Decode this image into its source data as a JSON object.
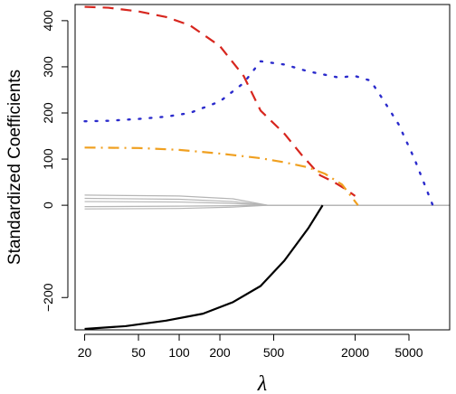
{
  "chart_data": {
    "type": "line",
    "title": "",
    "xlabel": "λ",
    "ylabel": "Standardized Coefficients",
    "x_scale": "log",
    "xlim": [
      17,
      10000
    ],
    "ylim": [
      -270,
      435
    ],
    "x_ticks": [
      {
        "value": 20,
        "label": "20"
      },
      {
        "value": 50,
        "label": "50"
      },
      {
        "value": 100,
        "label": "100"
      },
      {
        "value": 200,
        "label": "200"
      },
      {
        "value": 500,
        "label": "500"
      },
      {
        "value": 2000,
        "label": "2000"
      },
      {
        "value": 5000,
        "label": "5000"
      }
    ],
    "y_ticks": [
      {
        "value": 400,
        "label": "400"
      },
      {
        "value": 300,
        "label": "300"
      },
      {
        "value": 200,
        "label": "200"
      },
      {
        "value": 100,
        "label": "100"
      },
      {
        "value": 0,
        "label": "0"
      },
      {
        "value": -200,
        "label": "−200"
      }
    ],
    "grid": false,
    "legend": "none",
    "series": [
      {
        "color": "#d7261e",
        "dash": "dashed",
        "width": 2.2,
        "x": [
          20,
          30,
          50,
          80,
          120,
          200,
          300,
          400,
          600,
          800,
          1100,
          1400,
          1700,
          2000
        ],
        "y": [
          430,
          428,
          420,
          408,
          390,
          345,
          280,
          205,
          155,
          110,
          65,
          50,
          35,
          20
        ]
      },
      {
        "color": "#2b2bcc",
        "dash": "dotted",
        "width": 2.4,
        "x": [
          20,
          30,
          50,
          80,
          120,
          200,
          300,
          400,
          600,
          900,
          1500,
          2000,
          2600,
          3200,
          4200,
          5500,
          7500
        ],
        "y": [
          182,
          183,
          187,
          192,
          200,
          225,
          265,
          312,
          305,
          290,
          277,
          280,
          270,
          230,
          175,
          100,
          0
        ]
      },
      {
        "color": "#f0a020",
        "dash": "dashdot",
        "width": 2.2,
        "x": [
          20,
          50,
          100,
          200,
          400,
          600,
          900,
          1200,
          1600,
          2100
        ],
        "y": [
          125,
          124,
          120,
          112,
          102,
          93,
          82,
          68,
          45,
          0
        ]
      },
      {
        "color": "#000000",
        "dash": "solid",
        "width": 2.2,
        "x": [
          20,
          40,
          80,
          150,
          250,
          400,
          600,
          900,
          1150
        ],
        "y": [
          -268,
          -262,
          -250,
          -235,
          -210,
          -175,
          -120,
          -50,
          0
        ]
      },
      {
        "color": "#b5b5b5",
        "dash": "solid",
        "width": 1.2,
        "x": [
          20,
          100,
          250,
          450,
          10000
        ],
        "y": [
          22,
          20,
          14,
          0,
          0
        ]
      },
      {
        "color": "#b5b5b5",
        "dash": "solid",
        "width": 1.2,
        "x": [
          20,
          100,
          250,
          450,
          10000
        ],
        "y": [
          15,
          13,
          8,
          0,
          0
        ]
      },
      {
        "color": "#b5b5b5",
        "dash": "solid",
        "width": 1.2,
        "x": [
          20,
          100,
          250,
          450,
          10000
        ],
        "y": [
          8,
          7,
          4,
          0,
          0
        ]
      },
      {
        "color": "#b5b5b5",
        "dash": "solid",
        "width": 1.2,
        "x": [
          20,
          100,
          250,
          450,
          10000
        ],
        "y": [
          -3,
          -2,
          -1,
          0,
          0
        ]
      },
      {
        "color": "#b5b5b5",
        "dash": "solid",
        "width": 1.2,
        "x": [
          20,
          100,
          250,
          450,
          10000
        ],
        "y": [
          -8,
          -7,
          -4,
          0,
          0
        ]
      }
    ]
  }
}
